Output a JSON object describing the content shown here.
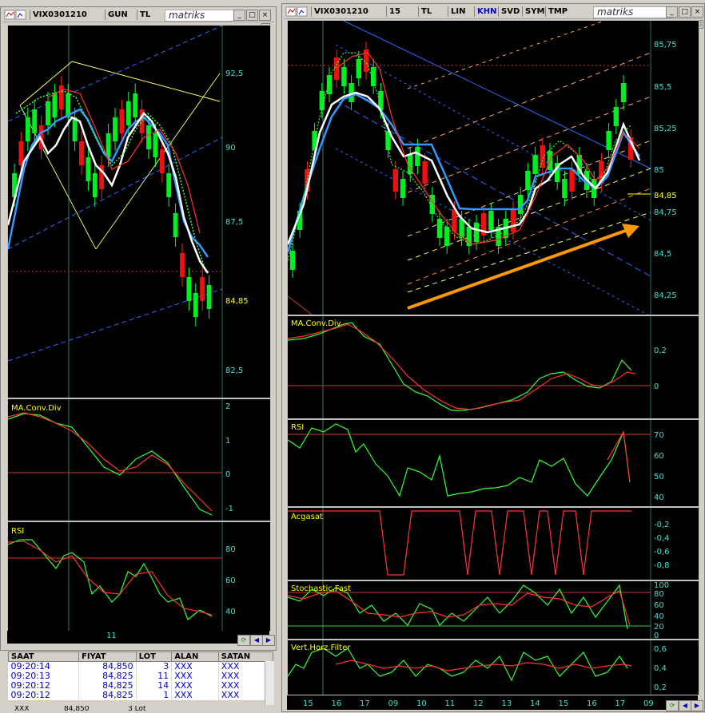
{
  "left_window": {
    "symbol": "VIX0301210",
    "period": "GUN",
    "currency": "TL",
    "logo": "matriks",
    "price_axis": [
      "92,5",
      "90",
      "87,5",
      "84,85",
      "82,5"
    ],
    "time_label": "11",
    "macd": {
      "title": "MA.Conv.Div",
      "axis": [
        "2",
        "1",
        "0",
        "-1"
      ]
    },
    "rsi": {
      "title": "RSI",
      "axis": [
        "80",
        "60",
        "40"
      ]
    }
  },
  "right_window": {
    "symbol": "VIX0301210",
    "period": "15",
    "currency": "TL",
    "toolbar": [
      "LIN",
      "KHN",
      "SVD",
      "SYM",
      "TMP"
    ],
    "logo": "matriks",
    "price_axis": [
      "85,75",
      "85,5",
      "85,25",
      "85",
      "84,85",
      "84,75",
      "84,5",
      "84,25"
    ],
    "macd": {
      "title": "MA.Conv.Div",
      "axis": [
        "0,2",
        "0"
      ]
    },
    "rsi": {
      "title": "RSI",
      "axis": [
        "70",
        "60",
        "50",
        "40"
      ]
    },
    "acgasat": {
      "title": "Acgasat",
      "axis": [
        "-0,2",
        "-0,4",
        "-0,6",
        "-0,8"
      ]
    },
    "stoch": {
      "title": "Stochastic,Fast",
      "axis": [
        "100",
        "80",
        "60",
        "40",
        "20",
        "0"
      ]
    },
    "vhf": {
      "title": "Vert.Horz.Filter",
      "axis": [
        "0,6",
        "0,4",
        "0,2"
      ]
    },
    "time_labels": [
      "15",
      "16",
      "17",
      "09",
      "10",
      "11",
      "12",
      "13",
      "14",
      "15",
      "16",
      "17",
      "09"
    ]
  },
  "trades": {
    "headers": [
      "SAAT",
      "FIYAT",
      "LOT",
      "ALAN",
      "SATAN"
    ],
    "rows": [
      [
        "09:20:14",
        "84,850",
        "3",
        "XXX",
        "XXX"
      ],
      [
        "09:20:13",
        "84,825",
        "11",
        "XXX",
        "XXX"
      ],
      [
        "09:20:12",
        "84,825",
        "14",
        "XXX",
        "XXX"
      ],
      [
        "09:20:12",
        "84,825",
        "1",
        "XXX",
        "XXX"
      ]
    ],
    "footer": [
      "XXX",
      "84,850",
      "3 Lot"
    ]
  }
}
